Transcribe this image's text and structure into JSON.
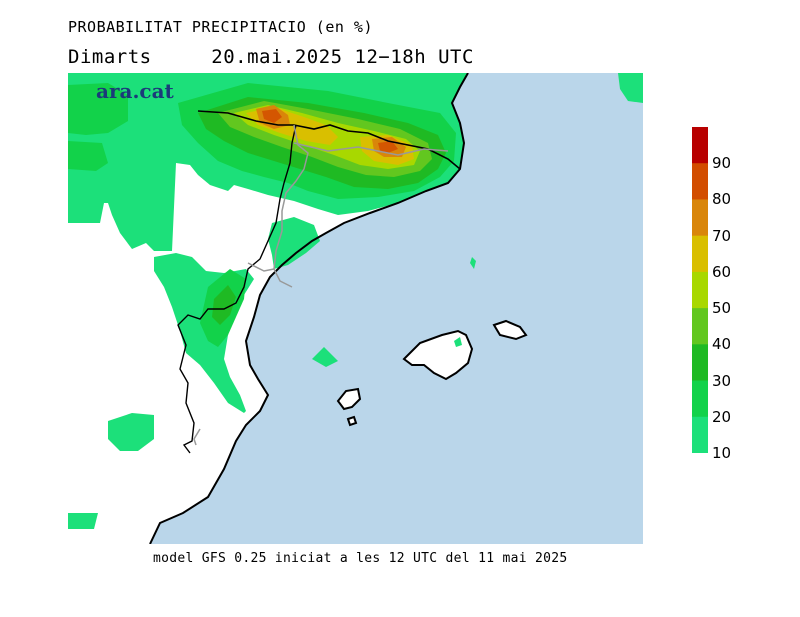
{
  "header": {
    "title": "PROBABILITAT PRECIPITACIO (en %)",
    "day": "Dimarts",
    "date_range": "20.mai.2025 12−18h UTC"
  },
  "logo": {
    "text": "ara.cat"
  },
  "footer": {
    "text": "model GFS 0.25 iniciat a les 12 UTC del 11 mai 2025"
  },
  "legend": {
    "labels": [
      "90",
      "80",
      "70",
      "60",
      "50",
      "40",
      "30",
      "20",
      "10"
    ],
    "colors": [
      "#b80000",
      "#d24d00",
      "#d9860a",
      "#d9bf00",
      "#a8d800",
      "#62c71f",
      "#1fba23",
      "#12d24a",
      "#1ce07a"
    ]
  },
  "map": {
    "sea_color": "#bad6ea",
    "land_color": "#ffffff"
  }
}
